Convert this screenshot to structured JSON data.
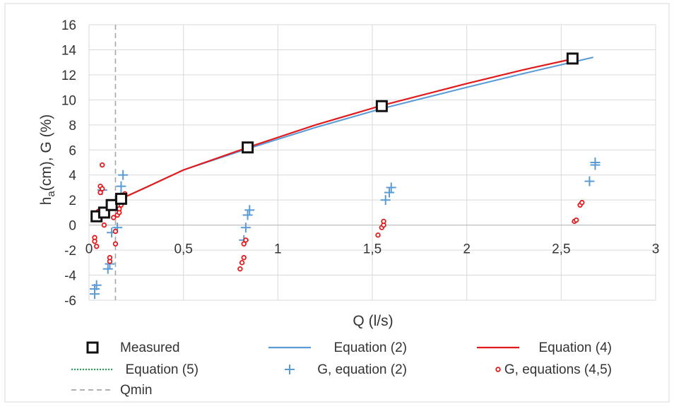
{
  "chart_data": {
    "type": "scatter",
    "xlabel": "Q (l/s)",
    "ylabel_main": "h",
    "ylabel_sub": "a",
    "ylabel_rest": "(cm), G (%)",
    "xlim": [
      0,
      3
    ],
    "ylim": [
      -6,
      16
    ],
    "x_ticks": [
      0,
      0.5,
      1,
      1.5,
      2,
      2.5,
      3
    ],
    "x_tick_labels": [
      "0",
      "0,5",
      "1",
      "1,5",
      "2",
      "2,5",
      "3"
    ],
    "y_ticks": [
      -6,
      -4,
      -2,
      0,
      2,
      4,
      6,
      8,
      10,
      12,
      14,
      16
    ],
    "y_tick_labels": [
      "-6",
      "-4",
      "-2",
      "0",
      "2",
      "4",
      "6",
      "8",
      "10",
      "12",
      "14",
      "16"
    ],
    "grid": true,
    "legend_position": "bottom",
    "colors": {
      "measured": "#111111",
      "eq2": "#5b9bd5",
      "eq4": "#e31a1c",
      "eq5": "#2ca25f",
      "g2": "#5b9bd5",
      "g45": "#e31a1c",
      "qmin": "#a6a6a6",
      "grid": "#d9d9d9"
    },
    "qmin": 0.14,
    "series": [
      {
        "name": "Measured",
        "kind": "square",
        "x": [
          0.04,
          0.08,
          0.12,
          0.17,
          0.84,
          1.55,
          2.56
        ],
        "y": [
          0.7,
          1.0,
          1.6,
          2.1,
          6.2,
          9.5,
          13.3
        ]
      },
      {
        "name": "Equation (2)",
        "kind": "line",
        "x": [
          0.17,
          0.3,
          0.5,
          0.84,
          1.2,
          1.55,
          2.0,
          2.3,
          2.67
        ],
        "y": [
          2.1,
          3.0,
          4.4,
          6.1,
          7.8,
          9.3,
          11.0,
          12.1,
          13.4
        ]
      },
      {
        "name": "Equation (4)",
        "kind": "line",
        "x": [
          0.17,
          0.3,
          0.5,
          0.84,
          1.2,
          1.55,
          2.0,
          2.3,
          2.57
        ],
        "y": [
          2.1,
          3.0,
          4.4,
          6.2,
          8.0,
          9.55,
          11.3,
          12.4,
          13.3
        ]
      },
      {
        "name": "Equation (5)",
        "kind": "dotted-line",
        "x": [],
        "y": []
      },
      {
        "name": "G, equation (2)",
        "kind": "plus",
        "x": [
          0.03,
          0.03,
          0.04,
          0.06,
          0.07,
          0.1,
          0.11,
          0.12,
          0.14,
          0.15,
          0.17,
          0.17,
          0.18,
          0.82,
          0.83,
          0.84,
          0.85,
          1.57,
          1.59,
          1.6,
          2.65,
          2.68,
          2.68
        ],
        "y": [
          -5.5,
          -5.1,
          -4.8,
          0.8,
          2.8,
          -3.5,
          -3.1,
          -0.6,
          1.9,
          -0.2,
          2.4,
          3.1,
          4.0,
          -1.2,
          -0.2,
          0.8,
          1.2,
          2.0,
          2.6,
          3.0,
          3.5,
          4.8,
          5.0
        ]
      },
      {
        "name": "G, equations (4,5)",
        "kind": "circle",
        "x": [
          0.03,
          0.03,
          0.04,
          0.05,
          0.06,
          0.06,
          0.07,
          0.07,
          0.08,
          0.11,
          0.11,
          0.13,
          0.14,
          0.14,
          0.15,
          0.16,
          0.16,
          0.17,
          0.18,
          0.19,
          0.8,
          0.81,
          0.82,
          0.82,
          0.83,
          1.53,
          1.55,
          1.56,
          1.56,
          2.57,
          2.58,
          2.6,
          2.61
        ],
        "y": [
          -1.0,
          -1.3,
          -1.7,
          1.1,
          2.6,
          3.1,
          2.9,
          4.8,
          0.0,
          -2.9,
          -2.6,
          0.6,
          -0.5,
          -1.5,
          0.8,
          1.0,
          1.3,
          1.6,
          2.0,
          2.5,
          -3.5,
          -3.0,
          -2.6,
          -1.5,
          -1.2,
          -0.8,
          -0.2,
          0.0,
          0.3,
          0.3,
          0.4,
          1.6,
          1.8
        ]
      },
      {
        "name": "Qmin",
        "kind": "vline"
      }
    ]
  }
}
